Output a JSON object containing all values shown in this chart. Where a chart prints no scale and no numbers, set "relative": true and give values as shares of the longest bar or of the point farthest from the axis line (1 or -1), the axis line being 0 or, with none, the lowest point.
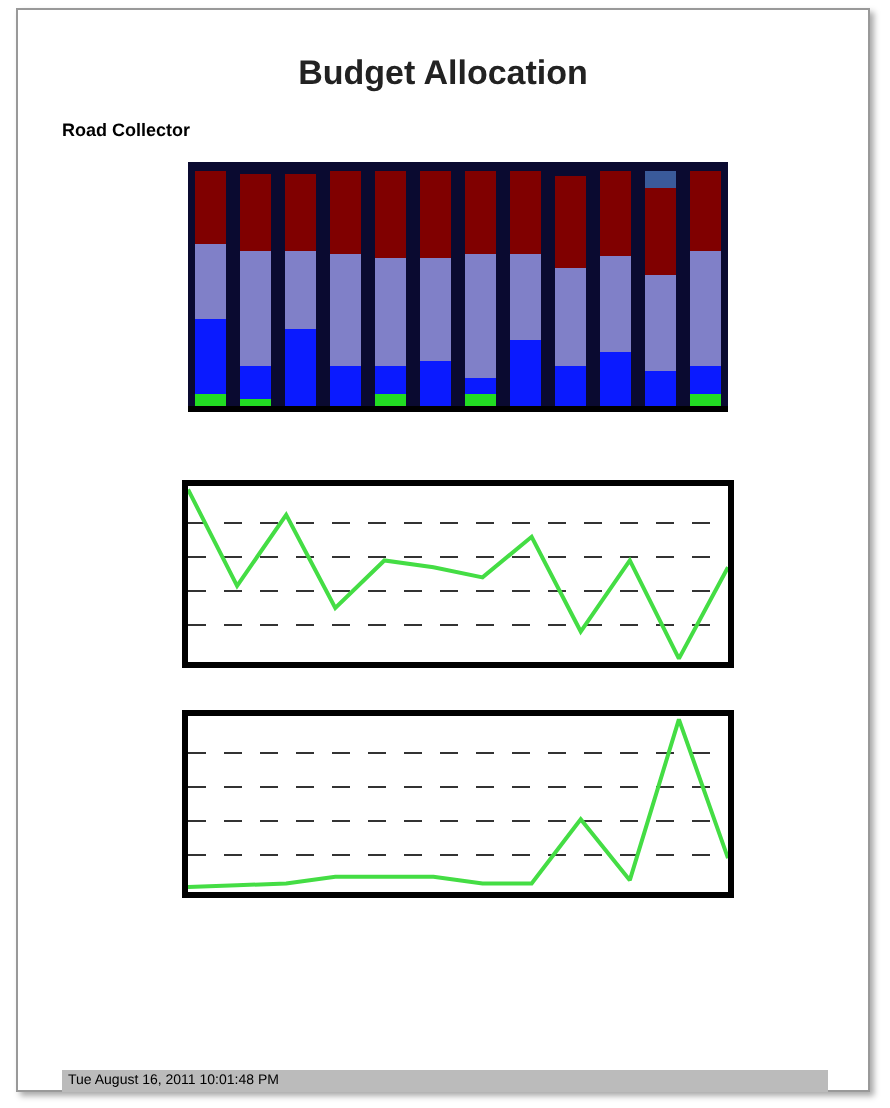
{
  "chart_data": [
    {
      "type": "bar",
      "title": "Budget Allocation",
      "subtitle": "Road Collector",
      "stacked": true,
      "relative": true,
      "categories": [
        null,
        null,
        null,
        null,
        null,
        null,
        null,
        null,
        null,
        null,
        null,
        null
      ],
      "series": [
        {
          "color": "#22dd22",
          "values": [
            0.05,
            0.03,
            null,
            null,
            0.05,
            null,
            0.05,
            null,
            null,
            null,
            null,
            0.05
          ]
        },
        {
          "color": "#0a1aff",
          "values": [
            0.32,
            0.14,
            0.33,
            0.17,
            0.12,
            0.19,
            0.07,
            0.28,
            0.17,
            0.23,
            0.15,
            0.12
          ]
        },
        {
          "color": "#8080c8",
          "values": [
            0.32,
            0.49,
            0.33,
            0.48,
            0.46,
            0.44,
            0.53,
            0.37,
            0.42,
            0.41,
            0.41,
            0.49
          ]
        },
        {
          "color": "#800000",
          "values": [
            0.31,
            0.33,
            0.33,
            0.35,
            0.37,
            0.37,
            0.35,
            0.35,
            0.39,
            0.36,
            0.37,
            0.34
          ]
        },
        {
          "color": "#3a5a9a",
          "values": [
            null,
            null,
            null,
            null,
            null,
            null,
            null,
            null,
            null,
            null,
            0.07,
            null
          ]
        }
      ]
    },
    {
      "type": "line",
      "relative": true,
      "grid": true,
      "line_style": "solid",
      "categories": [
        null,
        null,
        null,
        null,
        null,
        null,
        null,
        null,
        null,
        null,
        null,
        null
      ],
      "series": [
        {
          "color": "#44dd44",
          "values": [
            1,
            0.43,
            0.85,
            0.3,
            0.58,
            0.54,
            0.48,
            0.72,
            0.16,
            0.58,
            0,
            0.54
          ]
        }
      ]
    },
    {
      "type": "line",
      "relative": true,
      "grid": true,
      "line_style": "solid",
      "annotations": [
        "Tue August 16, 2011 10:01:48 PM"
      ],
      "categories": [
        null,
        null,
        null,
        null,
        null,
        null,
        null,
        null,
        null,
        null,
        null,
        null
      ],
      "series": [
        {
          "color": "#44dd44",
          "values": [
            0.01,
            0.02,
            0.03,
            0.07,
            0.07,
            0.07,
            0.03,
            0.03,
            0.41,
            0.05,
            1,
            0.18
          ]
        }
      ]
    }
  ]
}
